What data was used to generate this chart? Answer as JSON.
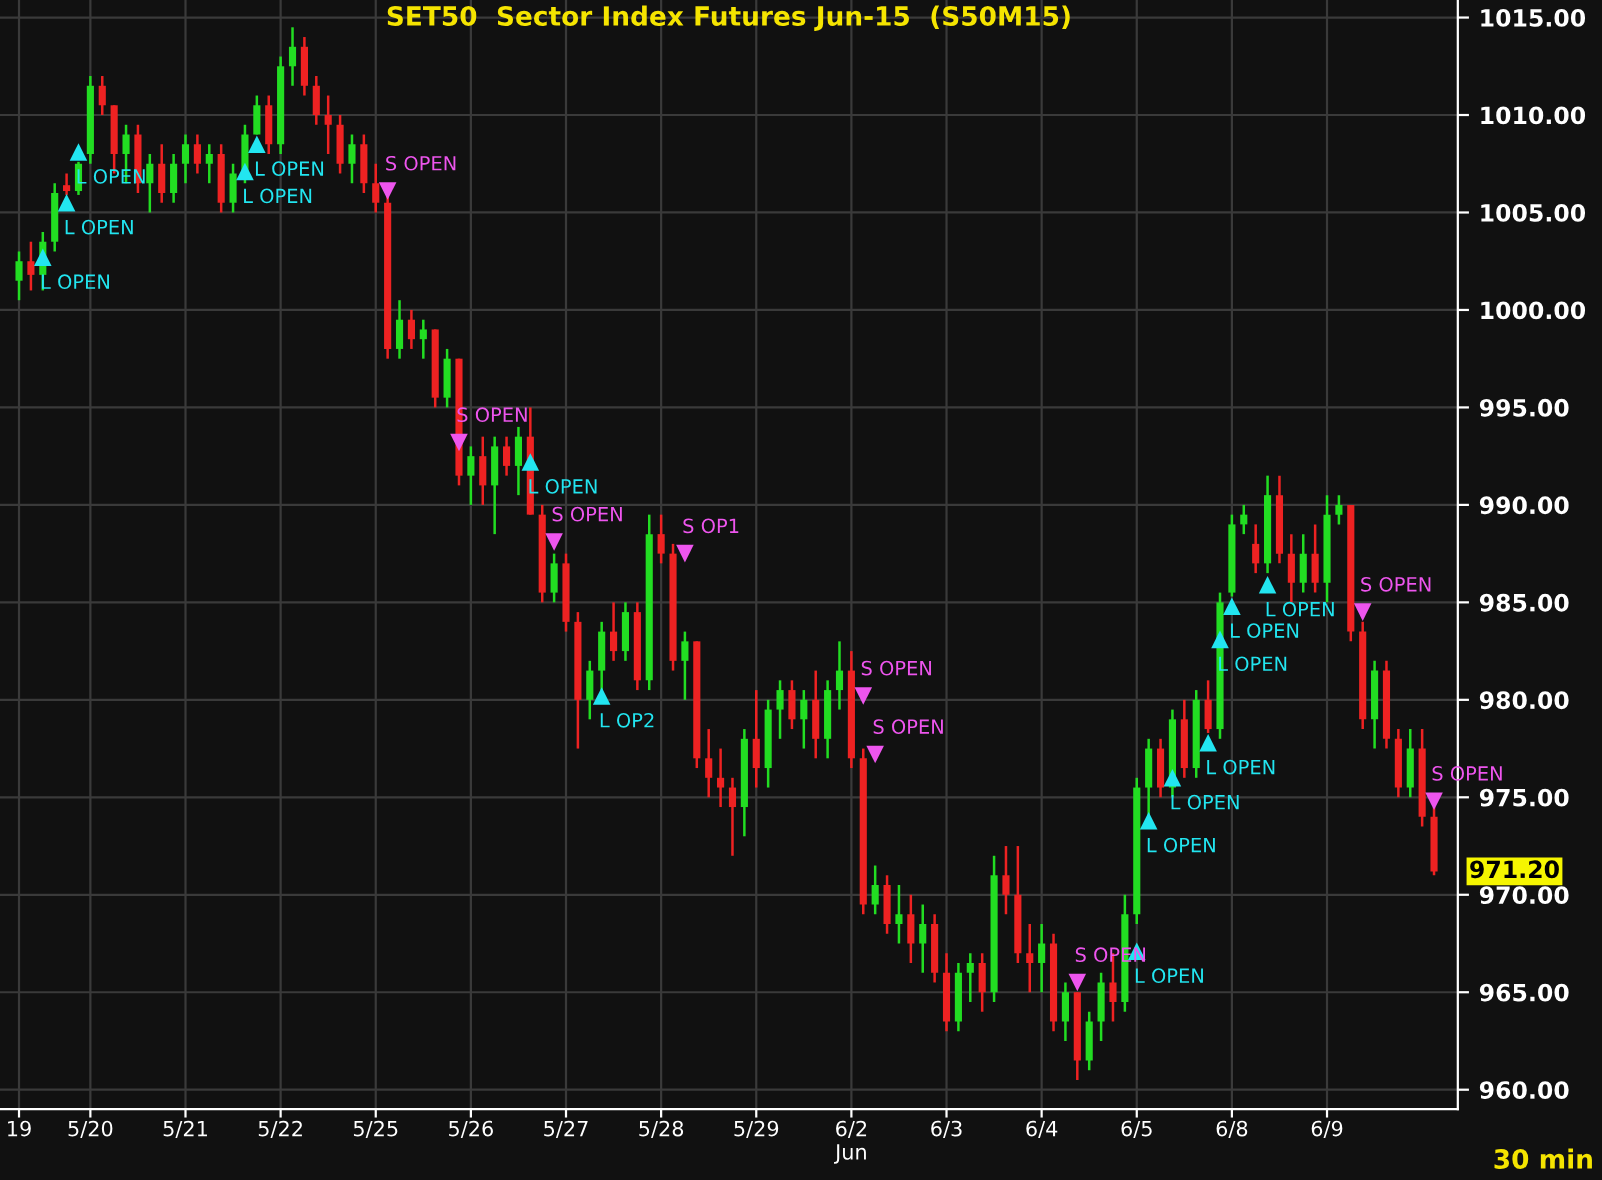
{
  "chart_data": {
    "type": "candlestick",
    "title": "SET50  Sector Index Futures Jun-15  (S50M15)",
    "categories": [
      "19",
      null,
      null,
      null,
      null,
      null,
      "5/20",
      null,
      null,
      null,
      null,
      null,
      null,
      null,
      "5/21",
      null,
      null,
      null,
      null,
      null,
      null,
      null,
      "5/22",
      null,
      null,
      null,
      null,
      null,
      null,
      null,
      "5/25",
      null,
      null,
      null,
      null,
      null,
      null,
      null,
      "5/26",
      null,
      null,
      null,
      null,
      null,
      null,
      null,
      "5/27",
      null,
      null,
      null,
      null,
      null,
      null,
      null,
      "5/28",
      null,
      null,
      null,
      null,
      null,
      null,
      null,
      "5/29",
      null,
      null,
      null,
      null,
      null,
      null,
      null,
      "6/2\nJun",
      null,
      null,
      null,
      null,
      null,
      null,
      null,
      "6/3",
      null,
      null,
      null,
      null,
      null,
      null,
      null,
      "6/4",
      null,
      null,
      null,
      null,
      null,
      null,
      null,
      "6/5",
      null,
      null,
      null,
      null,
      null,
      null,
      null,
      "6/8",
      null,
      null,
      null,
      null,
      null,
      null,
      null,
      "6/9",
      null,
      null,
      null,
      null,
      null,
      null,
      null,
      null,
      null
    ],
    "ohlc": [
      [
        1001.5,
        1003,
        1000.5,
        1002.5
      ],
      [
        1002.5,
        1003.5,
        1001,
        1001.8
      ],
      [
        1001.8,
        1004,
        1001,
        1003.5
      ],
      [
        1003.5,
        1006.5,
        1003,
        1006
      ],
      [
        1006.4,
        1007,
        1005.9,
        1006.1
      ],
      [
        1006.1,
        1007.6,
        1005.9,
        1007.5
      ],
      [
        1008,
        1012,
        1007.5,
        1011.5
      ],
      [
        1011.5,
        1012,
        1010,
        1010.5
      ],
      [
        1010.5,
        1010.5,
        1007,
        1008
      ],
      [
        1008,
        1009.5,
        1006.5,
        1009
      ],
      [
        1009,
        1009.5,
        1006,
        1006.5
      ],
      [
        1006.5,
        1008,
        1005,
        1007.5
      ],
      [
        1007.5,
        1008.5,
        1005.5,
        1006
      ],
      [
        1006,
        1008,
        1005.5,
        1007.5
      ],
      [
        1007.5,
        1009,
        1006.5,
        1008.5
      ],
      [
        1008.5,
        1009,
        1007,
        1007.5
      ],
      [
        1007.5,
        1008.5,
        1006.5,
        1008
      ],
      [
        1008,
        1008.5,
        1005,
        1005.5
      ],
      [
        1005.5,
        1007.5,
        1005,
        1007
      ],
      [
        1007,
        1009.5,
        1006.5,
        1009
      ],
      [
        1009,
        1011,
        1009,
        1010.5
      ],
      [
        1010.5,
        1011,
        1008,
        1008.5
      ],
      [
        1008.5,
        1013,
        1008,
        1012.5
      ],
      [
        1012.5,
        1014.5,
        1011.5,
        1013.5
      ],
      [
        1013.5,
        1014,
        1011,
        1011.5
      ],
      [
        1011.5,
        1012,
        1009.5,
        1010
      ],
      [
        1010,
        1011,
        1008,
        1009.5
      ],
      [
        1009.5,
        1010,
        1007,
        1007.5
      ],
      [
        1007.5,
        1009,
        1006.5,
        1008.5
      ],
      [
        1008.5,
        1009,
        1006,
        1006.5
      ],
      [
        1006.5,
        1007.5,
        1005,
        1005.5
      ],
      [
        1005.5,
        1006,
        997.5,
        998
      ],
      [
        998,
        1000.5,
        997.5,
        999.5
      ],
      [
        999.5,
        1000,
        998,
        998.5
      ],
      [
        998.5,
        999.5,
        997.5,
        999
      ],
      [
        999,
        999,
        995,
        995.5
      ],
      [
        995.5,
        998,
        995,
        997.5
      ],
      [
        997.5,
        997.5,
        991,
        991.5
      ],
      [
        991.5,
        993,
        990,
        992.5
      ],
      [
        992.5,
        993.5,
        990,
        991
      ],
      [
        991,
        993.5,
        988.5,
        993
      ],
      [
        993,
        993.5,
        991.5,
        992
      ],
      [
        992,
        994,
        990.5,
        993.5
      ],
      [
        993.5,
        995,
        989.5,
        989.5
      ],
      [
        989.5,
        990,
        985,
        985.5
      ],
      [
        985.5,
        987.5,
        985,
        987
      ],
      [
        987,
        987.5,
        983.5,
        984
      ],
      [
        984,
        984.5,
        977.5,
        980
      ],
      [
        980,
        982,
        979,
        981.5
      ],
      [
        981.5,
        984,
        980.5,
        983.5
      ],
      [
        983.5,
        985,
        982,
        982.5
      ],
      [
        982.5,
        985,
        982,
        984.5
      ],
      [
        984.5,
        985,
        980.5,
        981
      ],
      [
        981,
        989.5,
        980.5,
        988.5
      ],
      [
        988.5,
        989.5,
        987,
        987.5
      ],
      [
        987.5,
        988,
        981.5,
        982
      ],
      [
        982,
        983.5,
        980,
        983
      ],
      [
        983,
        983,
        976.5,
        977
      ],
      [
        977,
        978.5,
        975,
        976
      ],
      [
        976,
        977.5,
        974.5,
        975.5
      ],
      [
        975.5,
        976,
        972,
        974.5
      ],
      [
        974.5,
        978.5,
        973,
        978
      ],
      [
        978,
        980.5,
        975.5,
        976.5
      ],
      [
        976.5,
        980,
        975.5,
        979.5
      ],
      [
        979.5,
        981,
        978,
        980.5
      ],
      [
        980.5,
        981,
        978.5,
        979
      ],
      [
        979,
        980.5,
        977.5,
        980
      ],
      [
        980,
        981.5,
        977,
        978
      ],
      [
        978,
        981,
        977,
        980.5
      ],
      [
        980.5,
        983,
        979.5,
        981.5
      ],
      [
        981.5,
        982.5,
        976.5,
        977
      ],
      [
        977,
        977.5,
        969,
        969.5
      ],
      [
        969.5,
        971.5,
        969,
        970.5
      ],
      [
        970.5,
        971,
        968,
        968.5
      ],
      [
        968.5,
        970.5,
        967.5,
        969
      ],
      [
        969,
        970,
        966.5,
        967.5
      ],
      [
        967.5,
        969.5,
        966,
        968.5
      ],
      [
        968.5,
        969,
        965.5,
        966
      ],
      [
        966,
        967,
        963,
        963.5
      ],
      [
        963.5,
        966.5,
        963,
        966
      ],
      [
        966,
        967,
        964.5,
        966.5
      ],
      [
        966.5,
        967,
        964,
        965
      ],
      [
        965,
        972,
        964.5,
        971
      ],
      [
        971,
        972.5,
        969,
        970
      ],
      [
        970,
        972.5,
        966.5,
        967
      ],
      [
        967,
        968.5,
        965,
        966.5
      ],
      [
        966.5,
        968.5,
        965,
        967.5
      ],
      [
        967.5,
        968,
        963,
        963.5
      ],
      [
        963.5,
        965.5,
        962.5,
        965
      ],
      [
        965,
        965,
        960.5,
        961.5
      ],
      [
        961.5,
        964,
        961,
        963.5
      ],
      [
        963.5,
        966,
        962.5,
        965.5
      ],
      [
        965.5,
        967,
        963.5,
        964.5
      ],
      [
        964.5,
        970,
        964,
        969
      ],
      [
        969,
        976,
        968.5,
        975.5
      ],
      [
        975.5,
        978,
        974,
        977.5
      ],
      [
        977.5,
        978,
        975,
        975.5
      ],
      [
        975.5,
        979.5,
        975,
        979
      ],
      [
        979,
        980,
        976,
        976.5
      ],
      [
        976.5,
        980.5,
        976,
        980
      ],
      [
        980,
        981,
        978.3,
        978.5
      ],
      [
        978.5,
        985.5,
        978,
        985
      ],
      [
        985.5,
        989.5,
        985.3,
        989
      ],
      [
        989,
        990,
        988.5,
        989.5
      ],
      [
        988,
        989,
        986.5,
        987
      ],
      [
        987,
        991.5,
        986.5,
        990.5
      ],
      [
        990.5,
        991.5,
        987,
        987.5
      ],
      [
        987.5,
        988.5,
        985,
        986
      ],
      [
        986,
        988.5,
        985.5,
        987.5
      ],
      [
        987.5,
        989,
        985.5,
        986
      ],
      [
        986,
        990.5,
        985,
        989.5
      ],
      [
        989.5,
        990.5,
        989,
        990
      ],
      [
        990,
        990,
        983,
        983.5
      ],
      [
        983.5,
        984,
        978.5,
        979
      ],
      [
        979,
        982,
        977.5,
        981.5
      ],
      [
        981.5,
        982,
        977.5,
        978
      ],
      [
        978,
        978.5,
        975,
        975.5
      ],
      [
        975.5,
        978.5,
        975,
        977.5
      ],
      [
        977.5,
        978.5,
        973.5,
        974
      ],
      [
        974,
        974.5,
        971,
        971.2
      ]
    ],
    "colors": [
      "#22dd22",
      "#ee2222",
      "#22dd22",
      "#22dd22",
      "#ee2222",
      "#22dd22",
      "#22dd22",
      "#ee2222",
      "#ee2222",
      "#22dd22",
      "#ee2222",
      "#22dd22",
      "#ee2222",
      "#22dd22",
      "#22dd22",
      "#ee2222",
      "#22dd22",
      "#ee2222",
      "#22dd22",
      "#22dd22",
      "#22dd22",
      "#ee2222",
      "#22dd22",
      "#22dd22",
      "#ee2222",
      "#ee2222",
      "#ee2222",
      "#ee2222",
      "#22dd22",
      "#ee2222",
      "#ee2222",
      "#ee2222",
      "#22dd22",
      "#ee2222",
      "#22dd22",
      "#ee2222",
      "#22dd22",
      "#ee2222",
      "#22dd22",
      "#ee2222",
      "#22dd22",
      "#ee2222",
      "#22dd22",
      "#ee2222",
      "#ee2222",
      "#22dd22",
      "#ee2222",
      "#ee2222",
      "#22dd22",
      "#22dd22",
      "#ee2222",
      "#22dd22",
      "#ee2222",
      "#22dd22",
      "#ee2222",
      "#ee2222",
      "#22dd22",
      "#ee2222",
      "#ee2222",
      "#ee2222",
      "#ee2222",
      "#22dd22",
      "#ee2222",
      "#22dd22",
      "#22dd22",
      "#ee2222",
      "#22dd22",
      "#ee2222",
      "#22dd22",
      "#22dd22",
      "#ee2222",
      "#ee2222",
      "#22dd22",
      "#ee2222",
      "#22dd22",
      "#ee2222",
      "#22dd22",
      "#ee2222",
      "#ee2222",
      "#22dd22",
      "#22dd22",
      "#ee2222",
      "#22dd22",
      "#ee2222",
      "#ee2222",
      "#ee2222",
      "#22dd22",
      "#ee2222",
      "#22dd22",
      "#ee2222",
      "#22dd22",
      "#22dd22",
      "#ee2222",
      "#22dd22",
      "#22dd22",
      "#22dd22",
      "#ee2222",
      "#22dd22",
      "#ee2222",
      "#22dd22",
      "#ee2222",
      "#22dd22",
      "#22dd22",
      "#22dd22",
      "#ee2222",
      "#22dd22",
      "#ee2222",
      "#ee2222",
      "#22dd22",
      "#ee2222",
      "#22dd22",
      "#22dd22",
      "#ee2222",
      "#ee2222",
      "#22dd22",
      "#ee2222",
      "#ee2222",
      "#22dd22",
      "#ee2222",
      "#ee2222"
    ],
    "series": [
      {
        "type": "scatter",
        "marker": "triangle",
        "color": "#22e5f0",
        "values": [
          null,
          null,
          1002.7,
          null,
          1005.5,
          1008.1,
          null,
          null,
          null,
          null,
          null,
          null,
          null,
          null,
          null,
          null,
          null,
          null,
          null,
          1007.1,
          1008.5,
          null,
          null,
          null,
          null,
          null,
          null,
          null,
          null,
          null,
          null,
          null,
          null,
          null,
          null,
          null,
          null,
          null,
          null,
          null,
          null,
          null,
          null,
          992.2,
          null,
          null,
          null,
          null,
          null,
          980.2,
          null,
          null,
          null,
          null,
          null,
          null,
          null,
          null,
          null,
          null,
          null,
          null,
          null,
          null,
          null,
          null,
          null,
          null,
          null,
          null,
          null,
          null,
          null,
          null,
          null,
          null,
          null,
          null,
          null,
          null,
          null,
          null,
          null,
          null,
          null,
          null,
          null,
          null,
          null,
          null,
          null,
          null,
          null,
          null,
          967.1,
          973.8,
          null,
          976.0,
          null,
          null,
          977.8,
          983.1,
          984.8,
          null,
          null,
          985.9,
          null,
          null,
          null,
          null,
          null,
          null,
          null,
          null,
          null,
          null,
          null,
          null,
          null,
          null
        ],
        "value_labels": [
          null,
          null,
          "L OPEN",
          null,
          "L OPEN",
          "L OPEN",
          null,
          null,
          null,
          null,
          null,
          null,
          null,
          null,
          null,
          null,
          null,
          null,
          null,
          "L OPEN",
          "L OPEN",
          null,
          null,
          null,
          null,
          null,
          null,
          null,
          null,
          null,
          null,
          null,
          null,
          null,
          null,
          null,
          null,
          null,
          null,
          null,
          null,
          null,
          null,
          "L OPEN",
          null,
          null,
          null,
          null,
          null,
          "L OP2",
          null,
          null,
          null,
          null,
          null,
          null,
          null,
          null,
          null,
          null,
          null,
          null,
          null,
          null,
          null,
          null,
          null,
          null,
          null,
          null,
          null,
          null,
          null,
          null,
          null,
          null,
          null,
          null,
          null,
          null,
          null,
          null,
          null,
          null,
          null,
          null,
          null,
          null,
          null,
          null,
          null,
          null,
          null,
          null,
          "L OPEN",
          "L OPEN",
          null,
          "L OPEN",
          null,
          null,
          "L OPEN",
          "L OPEN",
          "L OPEN",
          null,
          null,
          "L OPEN",
          null,
          null,
          null,
          null,
          null,
          null,
          null,
          null,
          null,
          null,
          null,
          null,
          null,
          null
        ]
      },
      {
        "type": "scatter",
        "marker": "triangle",
        "color": "#ee55ee",
        "values": [
          null,
          null,
          null,
          null,
          null,
          null,
          null,
          null,
          null,
          null,
          null,
          null,
          null,
          null,
          null,
          null,
          null,
          null,
          null,
          null,
          null,
          null,
          null,
          null,
          null,
          null,
          null,
          null,
          null,
          null,
          null,
          1006.1,
          null,
          null,
          null,
          null,
          null,
          993.2,
          null,
          null,
          null,
          null,
          null,
          null,
          null,
          988.1,
          null,
          null,
          null,
          null,
          null,
          null,
          null,
          null,
          null,
          null,
          987.5,
          null,
          null,
          null,
          null,
          null,
          null,
          null,
          null,
          null,
          null,
          null,
          null,
          null,
          null,
          980.2,
          977.2,
          null,
          null,
          null,
          null,
          null,
          null,
          null,
          null,
          null,
          null,
          null,
          null,
          null,
          null,
          null,
          null,
          965.5,
          null,
          null,
          null,
          null,
          null,
          null,
          null,
          null,
          null,
          null,
          null,
          null,
          null,
          null,
          null,
          null,
          null,
          null,
          null,
          null,
          null,
          null,
          null,
          984.5,
          null,
          null,
          null,
          null,
          null,
          974.8
        ],
        "value_labels": [
          null,
          null,
          null,
          null,
          null,
          null,
          null,
          null,
          null,
          null,
          null,
          null,
          null,
          null,
          null,
          null,
          null,
          null,
          null,
          null,
          null,
          null,
          null,
          null,
          null,
          null,
          null,
          null,
          null,
          null,
          null,
          "S OPEN",
          null,
          null,
          null,
          null,
          null,
          "S OPEN",
          null,
          null,
          null,
          null,
          null,
          null,
          null,
          "S OPEN",
          null,
          null,
          null,
          null,
          null,
          null,
          null,
          null,
          null,
          null,
          "S OP1",
          null,
          null,
          null,
          null,
          null,
          null,
          null,
          null,
          null,
          null,
          null,
          null,
          null,
          null,
          "S OPEN",
          "S OPEN",
          null,
          null,
          null,
          null,
          null,
          null,
          null,
          null,
          null,
          null,
          null,
          null,
          null,
          null,
          null,
          null,
          "S OPEN",
          null,
          null,
          null,
          null,
          null,
          null,
          null,
          null,
          null,
          null,
          null,
          null,
          null,
          null,
          null,
          null,
          null,
          null,
          null,
          null,
          null,
          null,
          null,
          "S OPEN",
          null,
          null,
          null,
          null,
          null,
          "S OPEN"
        ]
      }
    ],
    "ylim": [
      959,
      1015.9
    ],
    "yticks": [
      {
        "value": 960,
        "label": "960.00"
      },
      {
        "value": 965,
        "label": "965.00"
      },
      {
        "value": 970,
        "label": "970.00"
      },
      {
        "value": 975,
        "label": "975.00"
      },
      {
        "value": 980,
        "label": "980.00"
      },
      {
        "value": 985,
        "label": "985.00"
      },
      {
        "value": 990,
        "label": "990.00"
      },
      {
        "value": 995,
        "label": "995.00"
      },
      {
        "value": 1000,
        "label": "1000.00"
      },
      {
        "value": 1005,
        "label": "1005.00"
      },
      {
        "value": 1010,
        "label": "1010.00"
      },
      {
        "value": 1015,
        "label": "1015.00"
      }
    ],
    "grid": true,
    "annotations": [
      "971.20",
      "30 min"
    ]
  }
}
